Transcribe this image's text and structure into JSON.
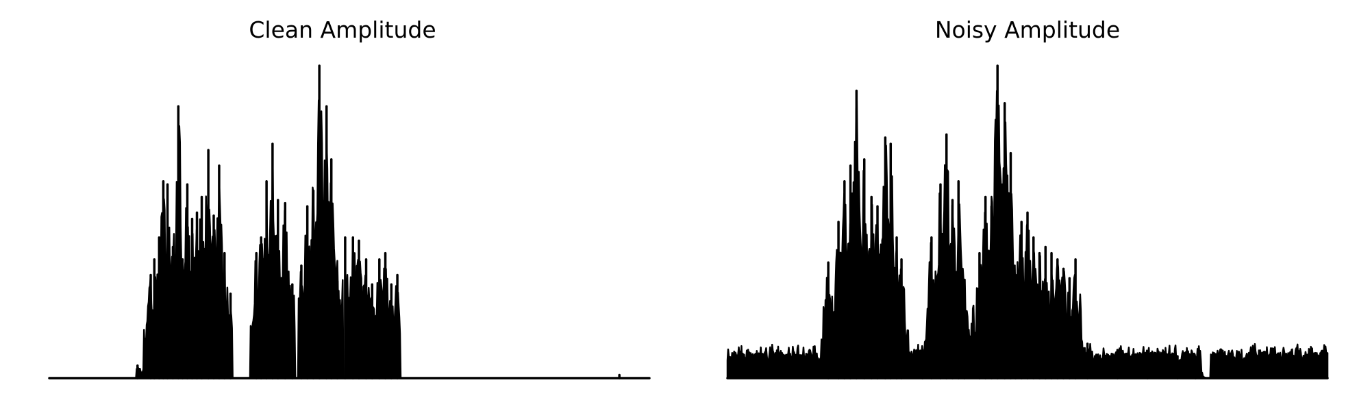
{
  "chart_data": [
    {
      "type": "line",
      "title": "Clean Amplitude",
      "xlabel": "",
      "ylabel": "",
      "axes_visible": false,
      "ylim": [
        0,
        1.0
      ],
      "series_color": "#000000",
      "peaks": [
        {
          "x": 0.147,
          "y": 0.04
        },
        {
          "x": 0.169,
          "y": 0.33
        },
        {
          "x": 0.175,
          "y": 0.38
        },
        {
          "x": 0.183,
          "y": 0.45
        },
        {
          "x": 0.19,
          "y": 0.63
        },
        {
          "x": 0.197,
          "y": 0.62
        },
        {
          "x": 0.206,
          "y": 0.42
        },
        {
          "x": 0.215,
          "y": 0.87
        },
        {
          "x": 0.222,
          "y": 0.38
        },
        {
          "x": 0.23,
          "y": 0.62
        },
        {
          "x": 0.238,
          "y": 0.51
        },
        {
          "x": 0.246,
          "y": 0.53
        },
        {
          "x": 0.254,
          "y": 0.58
        },
        {
          "x": 0.265,
          "y": 0.73
        },
        {
          "x": 0.274,
          "y": 0.52
        },
        {
          "x": 0.283,
          "y": 0.68
        },
        {
          "x": 0.292,
          "y": 0.4
        },
        {
          "x": 0.302,
          "y": 0.27
        },
        {
          "x": 0.345,
          "y": 0.4
        },
        {
          "x": 0.353,
          "y": 0.45
        },
        {
          "x": 0.362,
          "y": 0.63
        },
        {
          "x": 0.372,
          "y": 0.75
        },
        {
          "x": 0.381,
          "y": 0.57
        },
        {
          "x": 0.393,
          "y": 0.56
        },
        {
          "x": 0.405,
          "y": 0.3
        },
        {
          "x": 0.42,
          "y": 0.36
        },
        {
          "x": 0.43,
          "y": 0.55
        },
        {
          "x": 0.44,
          "y": 0.6
        },
        {
          "x": 0.45,
          "y": 1.0
        },
        {
          "x": 0.462,
          "y": 0.87
        },
        {
          "x": 0.47,
          "y": 0.7
        },
        {
          "x": 0.48,
          "y": 0.31
        },
        {
          "x": 0.493,
          "y": 0.45
        },
        {
          "x": 0.506,
          "y": 0.45
        },
        {
          "x": 0.516,
          "y": 0.44
        },
        {
          "x": 0.528,
          "y": 0.38
        },
        {
          "x": 0.538,
          "y": 0.3
        },
        {
          "x": 0.55,
          "y": 0.38
        },
        {
          "x": 0.56,
          "y": 0.4
        },
        {
          "x": 0.57,
          "y": 0.3
        },
        {
          "x": 0.58,
          "y": 0.33
        },
        {
          "x": 0.95,
          "y": 0.01
        }
      ],
      "gaps": [
        [
          0.0,
          0.145
        ],
        [
          0.305,
          0.335
        ],
        [
          0.41,
          0.415
        ],
        [
          0.49,
          0.495
        ],
        [
          0.585,
          1.0
        ]
      ],
      "noise_floor": 0.0
    },
    {
      "type": "line",
      "title": "Noisy Amplitude",
      "xlabel": "",
      "ylabel": "",
      "axes_visible": false,
      "ylim": [
        0,
        1.0
      ],
      "series_color": "#000000",
      "peaks": [
        {
          "x": 0.168,
          "y": 0.37
        },
        {
          "x": 0.185,
          "y": 0.5
        },
        {
          "x": 0.195,
          "y": 0.63
        },
        {
          "x": 0.205,
          "y": 0.68
        },
        {
          "x": 0.215,
          "y": 0.92
        },
        {
          "x": 0.228,
          "y": 0.7
        },
        {
          "x": 0.24,
          "y": 0.58
        },
        {
          "x": 0.25,
          "y": 0.55
        },
        {
          "x": 0.263,
          "y": 0.77
        },
        {
          "x": 0.272,
          "y": 0.75
        },
        {
          "x": 0.282,
          "y": 0.45
        },
        {
          "x": 0.29,
          "y": 0.38
        },
        {
          "x": 0.325,
          "y": 0.09
        },
        {
          "x": 0.34,
          "y": 0.45
        },
        {
          "x": 0.355,
          "y": 0.62
        },
        {
          "x": 0.365,
          "y": 0.78
        },
        {
          "x": 0.375,
          "y": 0.57
        },
        {
          "x": 0.385,
          "y": 0.63
        },
        {
          "x": 0.395,
          "y": 0.28
        },
        {
          "x": 0.42,
          "y": 0.4
        },
        {
          "x": 0.43,
          "y": 0.58
        },
        {
          "x": 0.44,
          "y": 0.55
        },
        {
          "x": 0.45,
          "y": 1.0
        },
        {
          "x": 0.462,
          "y": 0.88
        },
        {
          "x": 0.472,
          "y": 0.72
        },
        {
          "x": 0.48,
          "y": 0.33
        },
        {
          "x": 0.49,
          "y": 0.5
        },
        {
          "x": 0.5,
          "y": 0.53
        },
        {
          "x": 0.51,
          "y": 0.45
        },
        {
          "x": 0.52,
          "y": 0.4
        },
        {
          "x": 0.53,
          "y": 0.42
        },
        {
          "x": 0.54,
          "y": 0.4
        },
        {
          "x": 0.55,
          "y": 0.38
        },
        {
          "x": 0.56,
          "y": 0.35
        },
        {
          "x": 0.57,
          "y": 0.32
        },
        {
          "x": 0.58,
          "y": 0.38
        },
        {
          "x": 0.6,
          "y": 0.11
        },
        {
          "x": 0.65,
          "y": 0.09
        },
        {
          "x": 0.7,
          "y": 0.07
        },
        {
          "x": 0.75,
          "y": 0.07
        },
        {
          "x": 0.78,
          "y": 0.05
        }
      ],
      "gaps": [
        [
          0.79,
          0.805
        ]
      ],
      "noise_floor": 0.1
    }
  ]
}
